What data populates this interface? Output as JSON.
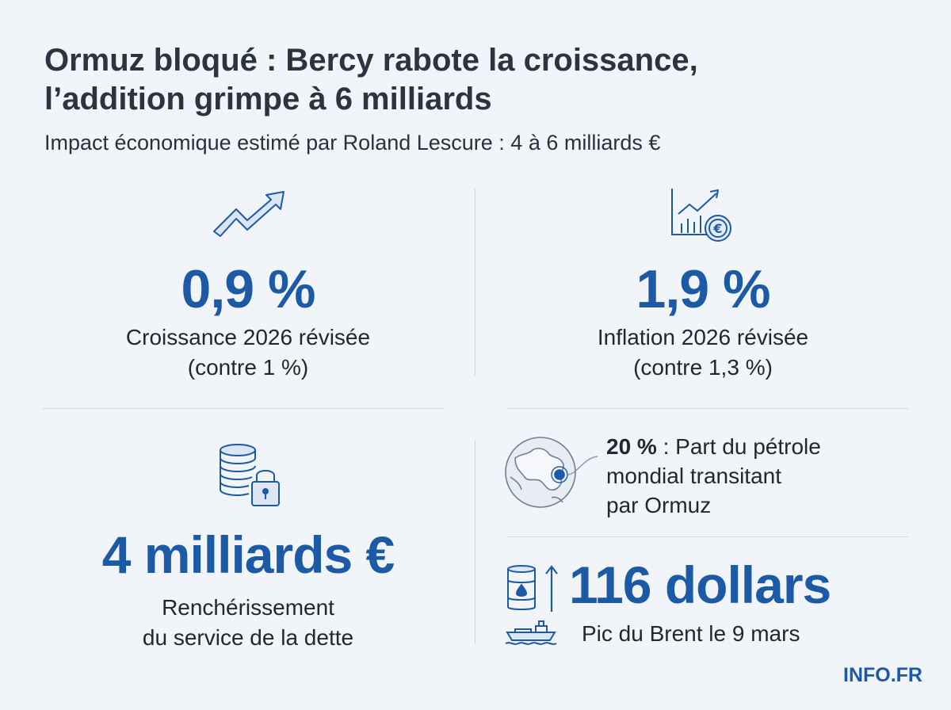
{
  "header": {
    "title_line1": "Ormuz bloqué : Bercy rabote la croissance,",
    "title_line2": "l’addition grimpe à 6 milliards",
    "subtitle": "Impact économique estimé par Roland Lescure : 4 à 6 milliards €"
  },
  "growth": {
    "icon": "trend-up-arrow-icon",
    "value": "0,9 %",
    "label_line1": "Croissance 2026 révisée",
    "label_line2": "(contre 1 %)"
  },
  "inflation": {
    "icon": "chart-euro-icon",
    "value": "1,9 %",
    "label_line1": "Inflation 2026 révisée",
    "label_line2": "(contre 1,3 %)"
  },
  "debt": {
    "icon": "coins-lock-icon",
    "value": "4 milliards €",
    "label_line1": "Renchérissement",
    "label_line2": "du service de la dette"
  },
  "ormuz": {
    "icon": "globe-icon",
    "share": "20 %",
    "text_part1": " : Part du pétrole",
    "text_part2": "mondial transitant",
    "text_part3": "par Ormuz"
  },
  "brent": {
    "icons": [
      "oil-barrel-icon",
      "up-arrow-icon",
      "tanker-ship-icon"
    ],
    "value": "116 dollars",
    "label": "Pic du Brent le 9 mars"
  },
  "footer": {
    "brand": "INFO.FR"
  },
  "colors": {
    "accent": "#1d5aa6",
    "text": "#222831",
    "background": "#f1f4f8"
  }
}
